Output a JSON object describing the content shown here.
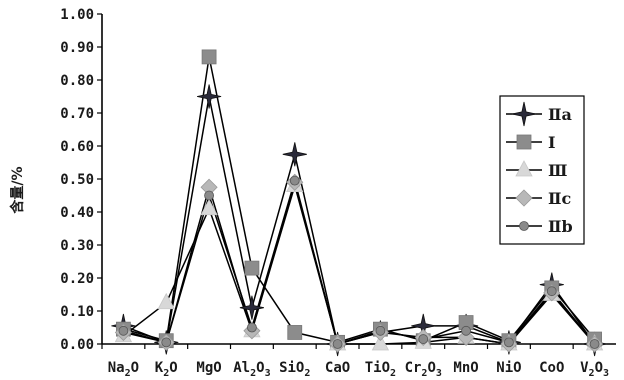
{
  "chart_data": {
    "type": "line",
    "title": "",
    "xlabel": "",
    "ylabel": "含量/%",
    "ylim": [
      0,
      1.0
    ],
    "yticks": [
      "0.00",
      "0.10",
      "0.20",
      "0.30",
      "0.40",
      "0.50",
      "0.60",
      "0.70",
      "0.80",
      "0.90",
      "1.00"
    ],
    "categories": [
      {
        "base": "Na",
        "sub": "2",
        "rest": "O"
      },
      {
        "base": "K",
        "sub": "2",
        "rest": "O"
      },
      {
        "base": "MgO",
        "sub": "",
        "rest": ""
      },
      {
        "base": "Al",
        "sub": "2",
        "rest": "O",
        "sub2": "3"
      },
      {
        "base": "SiO",
        "sub": "2",
        "rest": ""
      },
      {
        "base": "CaO",
        "sub": "",
        "rest": ""
      },
      {
        "base": "TiO",
        "sub": "2",
        "rest": ""
      },
      {
        "base": "Cr",
        "sub": "2",
        "rest": "O",
        "sub2": "3"
      },
      {
        "base": "MnO",
        "sub": "",
        "rest": ""
      },
      {
        "base": "NiO",
        "sub": "",
        "rest": ""
      },
      {
        "base": "CoO",
        "sub": "",
        "rest": ""
      },
      {
        "base": "V",
        "sub": "2",
        "rest": "O",
        "sub2": "3"
      }
    ],
    "series": [
      {
        "name": "Ⅱa",
        "marker": "star",
        "color": "#2a2a3a",
        "values": [
          0.055,
          0.005,
          0.75,
          0.11,
          0.575,
          0.0,
          0.035,
          0.055,
          0.055,
          0.005,
          0.18,
          0.0
        ]
      },
      {
        "name": "Ⅰ",
        "marker": "square",
        "color": "#8c8c8c",
        "values": [
          0.045,
          0.01,
          0.87,
          0.23,
          0.035,
          0.005,
          0.045,
          0.01,
          0.065,
          0.01,
          0.17,
          0.015
        ]
      },
      {
        "name": "Ⅲ",
        "marker": "triangle",
        "color": "#d8d8d8",
        "values": [
          0.025,
          0.125,
          0.41,
          0.04,
          0.48,
          0.0,
          0.0,
          0.005,
          0.02,
          0.0,
          0.15,
          0.0
        ]
      },
      {
        "name": "Ⅱc",
        "marker": "diamond",
        "color": "#b8b8b8",
        "values": [
          0.035,
          0.005,
          0.475,
          0.04,
          0.49,
          0.0,
          0.035,
          0.02,
          0.02,
          0.0,
          0.155,
          0.0
        ]
      },
      {
        "name": "Ⅱb",
        "marker": "circle",
        "color": "#8a8a8a",
        "values": [
          0.04,
          0.005,
          0.45,
          0.05,
          0.495,
          0.0,
          0.04,
          0.015,
          0.04,
          0.005,
          0.16,
          0.0
        ]
      }
    ],
    "legend_position": "right",
    "grid": false
  }
}
